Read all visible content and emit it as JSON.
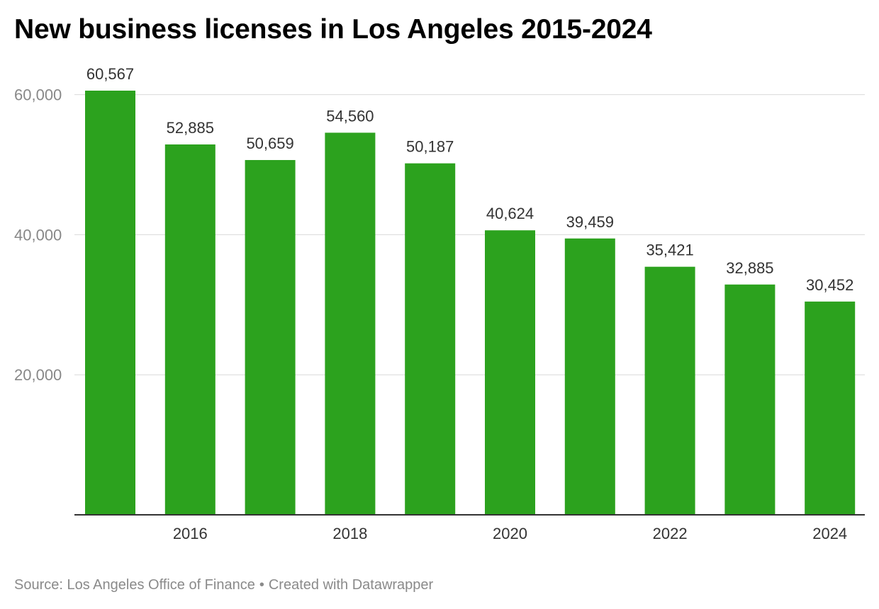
{
  "title": "New business licenses in Los Angeles 2015-2024",
  "footer": {
    "source": "Source: Los Angeles Office of Finance",
    "separator": "•",
    "credit": "Created with Datawrapper"
  },
  "colors": {
    "bar": "#2ca21e",
    "grid": "#d9d9d9",
    "axis": "#333333"
  },
  "chart_data": {
    "type": "bar",
    "title": "New business licenses in Los Angeles 2015-2024",
    "xlabel": "",
    "ylabel": "",
    "categories": [
      "2015",
      "2016",
      "2017",
      "2018",
      "2019",
      "2020",
      "2021",
      "2022",
      "2023",
      "2024"
    ],
    "values": [
      60567,
      52885,
      50659,
      54560,
      50187,
      40624,
      39459,
      35421,
      32885,
      30452
    ],
    "data_labels": [
      "60,567",
      "52,885",
      "50,659",
      "54,560",
      "50,187",
      "40,624",
      "39,459",
      "35,421",
      "32,885",
      "30,452"
    ],
    "x_tick_labels": [
      "",
      "2016",
      "",
      "2018",
      "",
      "2020",
      "",
      "2022",
      "",
      "2024"
    ],
    "y_ticks": [
      20000,
      40000,
      60000
    ],
    "y_tick_labels": [
      "20,000",
      "40,000",
      "60,000"
    ],
    "ylim": [
      0,
      60567
    ],
    "grid": true,
    "legend": "none"
  }
}
